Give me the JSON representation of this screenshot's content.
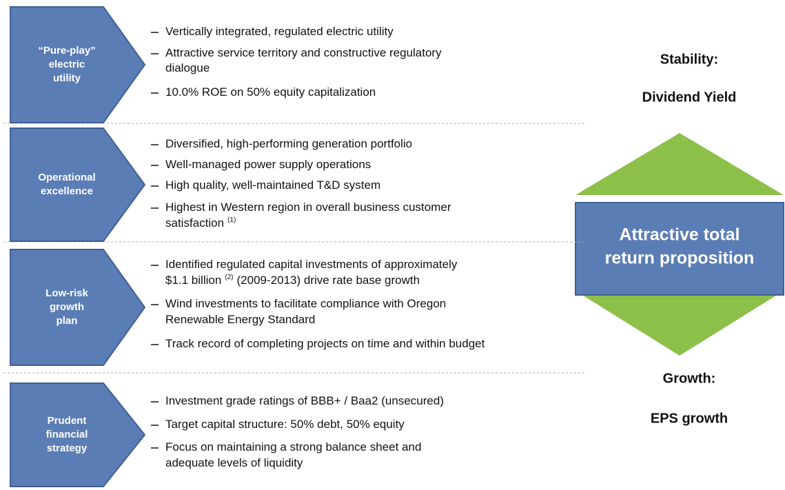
{
  "rows": [
    {
      "label": [
        "“Pure-play”",
        "electric",
        "utility"
      ],
      "bullets": [
        {
          "lines": [
            {
              "text": "Vertically integrated, regulated electric utility"
            }
          ]
        },
        {
          "lines": [
            {
              "text": "Attractive service territory and constructive regulatory"
            },
            {
              "text": "dialogue"
            }
          ]
        },
        {
          "lines": [
            {
              "text": "10.0% ROE on 50% equity capitalization"
            }
          ]
        }
      ]
    },
    {
      "label": [
        "Operational",
        "excellence"
      ],
      "bullets": [
        {
          "lines": [
            {
              "text": "Diversified, high-performing generation portfolio"
            }
          ]
        },
        {
          "lines": [
            {
              "text": "Well-managed power supply operations"
            }
          ]
        },
        {
          "lines": [
            {
              "text": "High quality, well-maintained T&D system"
            }
          ]
        },
        {
          "lines": [
            {
              "text": "Highest in Western region in overall business customer"
            },
            {
              "text": "satisfaction",
              "sup": "(1)"
            }
          ]
        }
      ]
    },
    {
      "label": [
        "Low-risk",
        "growth",
        "plan"
      ],
      "bullets": [
        {
          "lines": [
            {
              "text": "Identified regulated capital investments of approximately"
            },
            {
              "text": "$1.1 billion",
              "sup": "(2)",
              "after": "(2009-2013) drive rate base growth"
            }
          ]
        },
        {
          "lines": [
            {
              "text": "Wind investments to facilitate compliance with Oregon"
            },
            {
              "text": "Renewable Energy Standard"
            }
          ]
        },
        {
          "lines": [
            {
              "text": "Track record of completing projects on time and within budget"
            }
          ]
        }
      ]
    },
    {
      "label": [
        "Prudent",
        "financial",
        "strategy"
      ],
      "bullets": [
        {
          "lines": [
            {
              "text": "Investment grade ratings of BBB+ / Baa2 (unsecured)"
            }
          ]
        },
        {
          "lines": [
            {
              "text": "Target capital structure: 50% debt, 50% equity"
            }
          ]
        },
        {
          "lines": [
            {
              "text": "Focus on maintaining a strong balance sheet and"
            },
            {
              "text": "adequate levels of liquidity"
            }
          ]
        }
      ]
    }
  ],
  "side": {
    "top_heading": "Stability:",
    "top_sub": "Dividend Yield",
    "center": [
      "Attractive total",
      "return proposition"
    ],
    "bottom_heading": "Growth:",
    "bottom_sub": "EPS growth"
  }
}
